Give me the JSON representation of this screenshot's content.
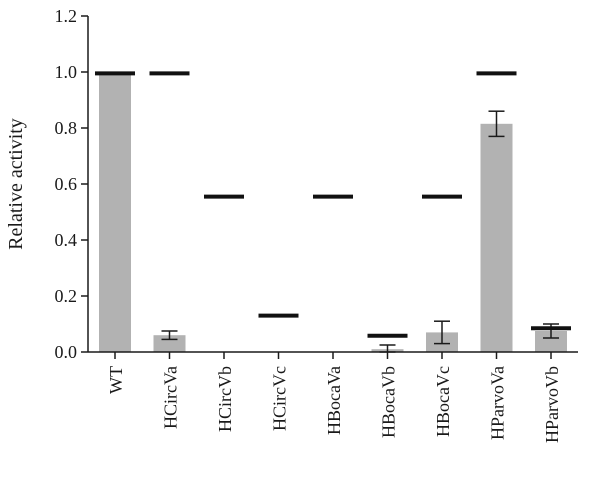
{
  "chart_data": {
    "type": "bar",
    "title": "",
    "xlabel": "",
    "ylabel": "Relative activity",
    "ylim": [
      0,
      1.2
    ],
    "yticks": [
      "0.0",
      "0.2",
      "0.4",
      "0.6",
      "0.8",
      "1.0",
      "1.2"
    ],
    "categories": [
      "WT",
      "HCircVa",
      "HCircVb",
      "HCircVc",
      "HBocaVa",
      "HBocaVb",
      "HBocaVc",
      "HParvoVa",
      "HParvoVb"
    ],
    "series": [
      {
        "values": [
          1.0,
          0.06,
          0.0,
          0.0,
          0.0,
          0.01,
          0.07,
          0.815,
          0.075
        ],
        "error": [
          null,
          0.015,
          null,
          null,
          null,
          0.015,
          0.04,
          0.045,
          0.025
        ],
        "marker": [
          0.995,
          0.995,
          0.555,
          0.13,
          0.555,
          0.058,
          0.555,
          0.995,
          0.085
        ]
      }
    ],
    "grid": false,
    "colors": {
      "bar": "#b2b2b2",
      "axis": "#1a1a1a",
      "marker": "#111111"
    }
  }
}
